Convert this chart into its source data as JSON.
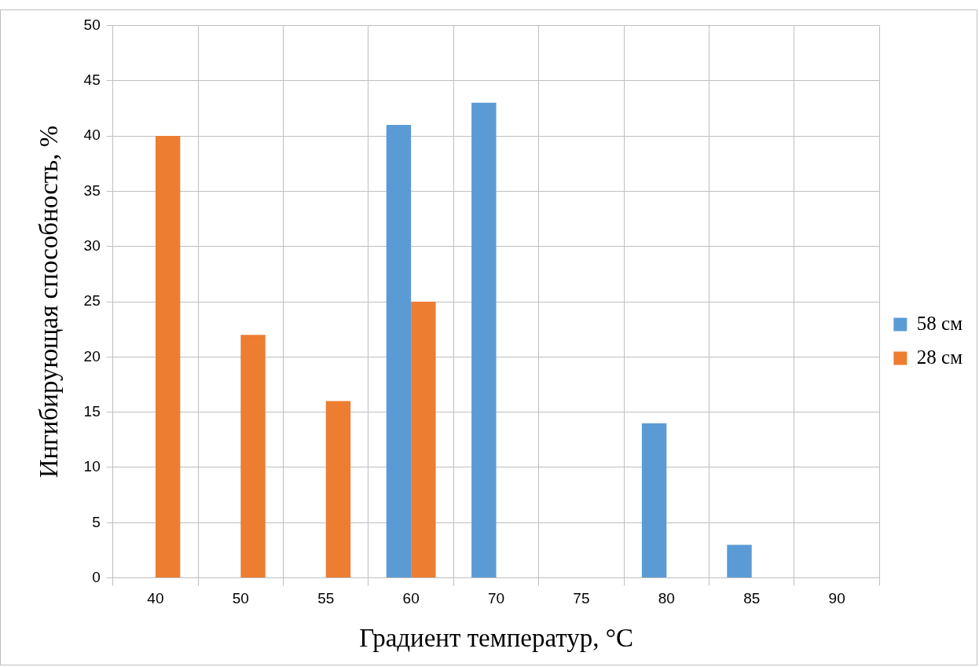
{
  "chart_data": {
    "type": "bar",
    "xlabel": "Градиент температур, °C",
    "ylabel": "Ингибирующая способность, %",
    "categories": [
      "40",
      "50",
      "55",
      "60",
      "70",
      "75",
      "80",
      "85",
      "90"
    ],
    "series": [
      {
        "name": "58 см",
        "color": "#5b9bd5",
        "values": [
          null,
          null,
          null,
          41,
          43,
          null,
          14,
          3,
          null
        ]
      },
      {
        "name": "28 см",
        "color": "#ed7d31",
        "values": [
          40,
          22,
          16,
          25,
          null,
          null,
          null,
          null,
          null
        ]
      }
    ],
    "ylim": [
      0,
      50
    ],
    "yticks": [
      0,
      5,
      10,
      15,
      20,
      25,
      30,
      35,
      40,
      45,
      50
    ],
    "grid": true,
    "legend": "right"
  }
}
